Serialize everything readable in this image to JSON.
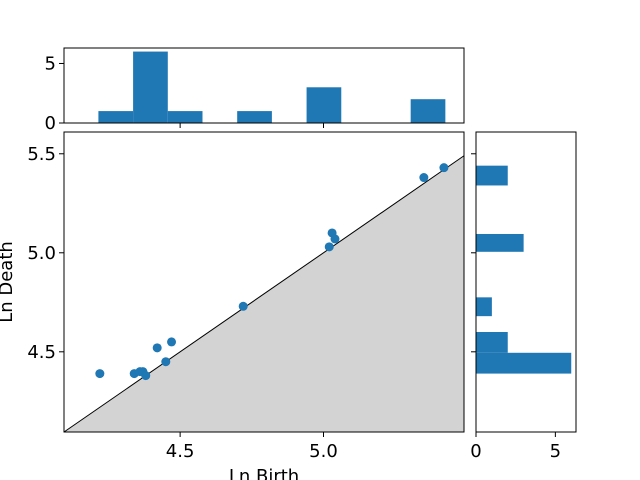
{
  "chart_data": {
    "type": "scatter",
    "xlabel": "Ln Birth",
    "ylabel": "Ln Death",
    "xlim": [
      4.095,
      5.49
    ],
    "ylim": [
      4.095,
      5.61
    ],
    "xticks": [
      4.5,
      5.0
    ],
    "xtick_labels": [
      "4.5",
      "5.0"
    ],
    "yticks": [
      4.5,
      5.0,
      5.5
    ],
    "ytick_labels": [
      "4.5",
      "5.0",
      "5.5"
    ],
    "diagonal_line": true,
    "region_below_diagonal_color": "#d3d3d3",
    "point_color": "#1f77b4",
    "points": [
      {
        "x": 4.22,
        "y": 4.39
      },
      {
        "x": 4.34,
        "y": 4.39
      },
      {
        "x": 4.36,
        "y": 4.4
      },
      {
        "x": 4.37,
        "y": 4.4
      },
      {
        "x": 4.38,
        "y": 4.38
      },
      {
        "x": 4.42,
        "y": 4.52
      },
      {
        "x": 4.45,
        "y": 4.45
      },
      {
        "x": 4.47,
        "y": 4.55
      },
      {
        "x": 4.72,
        "y": 4.73
      },
      {
        "x": 5.02,
        "y": 5.03
      },
      {
        "x": 5.03,
        "y": 5.1
      },
      {
        "x": 5.04,
        "y": 5.07
      },
      {
        "x": 5.35,
        "y": 5.38
      },
      {
        "x": 5.42,
        "y": 5.43
      }
    ],
    "top_histogram": {
      "type": "bar",
      "axis": "x",
      "bins": [
        {
          "from": 4.215,
          "to": 4.336,
          "count": 1
        },
        {
          "from": 4.336,
          "to": 4.457,
          "count": 6
        },
        {
          "from": 4.457,
          "to": 4.578,
          "count": 1
        },
        {
          "from": 4.699,
          "to": 4.82,
          "count": 1
        },
        {
          "from": 4.941,
          "to": 5.062,
          "count": 3
        },
        {
          "from": 5.304,
          "to": 5.425,
          "count": 2
        }
      ],
      "ylim": [
        0,
        6.3
      ],
      "yticks": [
        0,
        5
      ],
      "ytick_labels": [
        "0",
        "5"
      ]
    },
    "right_histogram": {
      "type": "bar",
      "axis": "y",
      "bins": [
        {
          "from": 4.39,
          "to": 4.495,
          "count": 6
        },
        {
          "from": 4.495,
          "to": 4.6,
          "count": 2
        },
        {
          "from": 4.68,
          "to": 4.775,
          "count": 1
        },
        {
          "from": 5.005,
          "to": 5.095,
          "count": 3
        },
        {
          "from": 5.34,
          "to": 5.44,
          "count": 2
        }
      ],
      "xlim": [
        0,
        6.3
      ],
      "xticks": [
        0,
        5
      ],
      "xtick_labels": [
        "0",
        "5"
      ]
    }
  }
}
